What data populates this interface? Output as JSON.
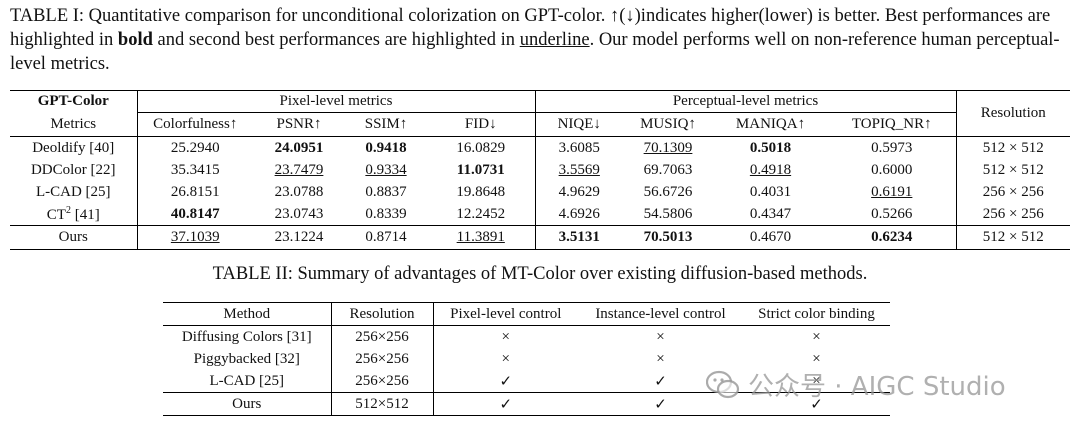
{
  "table1": {
    "caption": {
      "p1": "TABLE I: Quantitative comparison for unconditional colorization on GPT-color. ↑(↓)indicates higher(lower) is better. Best performances are highlighted in ",
      "bold": "bold",
      "p2": " and second best performances are highlighted in ",
      "underline": "underline",
      "p3": ". Our model performs well on non-reference human perceptual-level metrics."
    },
    "dataset_label": "GPT-Color",
    "metrics_label": "Metrics",
    "pixel_group": "Pixel-level metrics",
    "perceptual_group": "Perceptual-level metrics",
    "resolution_header": "Resolution",
    "columns": [
      "Colorfulness↑",
      "PSNR↑",
      "SSIM↑",
      "FID↓",
      "NIQE↓",
      "MUSIQ↑",
      "MANIQA↑",
      "TOPIQ_NR↑"
    ],
    "rows": [
      {
        "method": "Deoldify [40]",
        "cells": [
          {
            "v": "25.2940",
            "s": ""
          },
          {
            "v": "24.0951",
            "s": "bold"
          },
          {
            "v": "0.9418",
            "s": "bold"
          },
          {
            "v": "16.0829",
            "s": ""
          },
          {
            "v": "3.6085",
            "s": ""
          },
          {
            "v": "70.1309",
            "s": "ul"
          },
          {
            "v": "0.5018",
            "s": "bold"
          },
          {
            "v": "0.5973",
            "s": ""
          }
        ],
        "resolution": "512 × 512"
      },
      {
        "method": "DDColor [22]",
        "cells": [
          {
            "v": "35.3415",
            "s": ""
          },
          {
            "v": "23.7479",
            "s": "ul"
          },
          {
            "v": "0.9334",
            "s": "ul"
          },
          {
            "v": "11.0731",
            "s": "bold"
          },
          {
            "v": "3.5569",
            "s": "ul"
          },
          {
            "v": "69.7063",
            "s": ""
          },
          {
            "v": "0.4918",
            "s": "ul"
          },
          {
            "v": "0.6000",
            "s": ""
          }
        ],
        "resolution": "512 × 512"
      },
      {
        "method": "L-CAD [25]",
        "cells": [
          {
            "v": "26.8151",
            "s": ""
          },
          {
            "v": "23.0788",
            "s": ""
          },
          {
            "v": "0.8837",
            "s": ""
          },
          {
            "v": "19.8648",
            "s": ""
          },
          {
            "v": "4.9629",
            "s": ""
          },
          {
            "v": "56.6726",
            "s": ""
          },
          {
            "v": "0.4031",
            "s": ""
          },
          {
            "v": "0.6191",
            "s": "ul"
          }
        ],
        "resolution": "256 × 256"
      },
      {
        "method": "CT",
        "sup": "2",
        "method_suffix": " [41]",
        "cells": [
          {
            "v": "40.8147",
            "s": "bold"
          },
          {
            "v": "23.0743",
            "s": ""
          },
          {
            "v": "0.8339",
            "s": ""
          },
          {
            "v": "12.2452",
            "s": ""
          },
          {
            "v": "4.6926",
            "s": ""
          },
          {
            "v": "54.5806",
            "s": ""
          },
          {
            "v": "0.4347",
            "s": ""
          },
          {
            "v": "0.5266",
            "s": ""
          }
        ],
        "resolution": "256 × 256"
      },
      {
        "method": "Ours",
        "cells": [
          {
            "v": "37.1039",
            "s": "ul"
          },
          {
            "v": "23.1224",
            "s": ""
          },
          {
            "v": "0.8714",
            "s": ""
          },
          {
            "v": "11.3891",
            "s": "ul"
          },
          {
            "v": "3.5131",
            "s": "bold"
          },
          {
            "v": "70.5013",
            "s": "bold"
          },
          {
            "v": "0.4670",
            "s": ""
          },
          {
            "v": "0.6234",
            "s": "bold"
          }
        ],
        "resolution": "512 × 512"
      }
    ]
  },
  "table2": {
    "caption": "TABLE II: Summary of advantages of MT-Color over existing diffusion-based methods.",
    "columns": [
      "Method",
      "Resolution",
      "Pixel-level control",
      "Instance-level control",
      "Strict color binding"
    ],
    "rows": [
      [
        "Diffusing Colors [31]",
        "256×256",
        "×",
        "×",
        "×"
      ],
      [
        "Piggybacked [32]",
        "256×256",
        "×",
        "×",
        "×"
      ],
      [
        "L-CAD [25]",
        "256×256",
        "✓",
        "✓",
        "×"
      ],
      [
        "Ours",
        "512×512",
        "✓",
        "✓",
        "✓"
      ]
    ]
  },
  "watermark": {
    "text": "公众号 · AIGC Studio",
    "icon": "wechat-icon"
  }
}
